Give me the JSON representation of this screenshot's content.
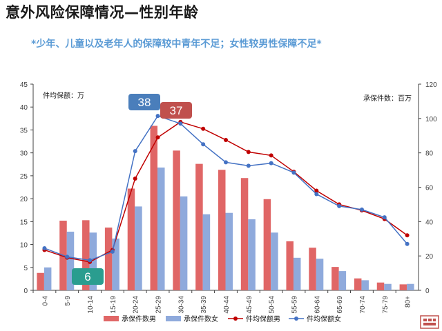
{
  "title": "意外风险保障情况—性别年龄",
  "subtitle": "*少年、儿童以及老年人的保障较中青年不足；女性较男性保障不足*",
  "chart_data": {
    "type": "bar",
    "categories": [
      "0-4",
      "5-9",
      "10-14",
      "15-19",
      "20-24",
      "25-29",
      "30-34",
      "35-39",
      "40-44",
      "45-49",
      "50-54",
      "55-59",
      "60-64",
      "65-69",
      "70-74",
      "75-79",
      "80+"
    ],
    "left_axis": {
      "label": "件均保额：万",
      "min": 0,
      "max": 45,
      "ticks": [
        0,
        5,
        10,
        15,
        20,
        25,
        30,
        35,
        40,
        45
      ]
    },
    "right_axis": {
      "label": "承保件数：百万",
      "min": 0,
      "max": 120,
      "ticks": [
        0,
        20,
        40,
        60,
        80,
        100,
        120
      ]
    },
    "series": [
      {
        "name": "承保件数男",
        "kind": "bar",
        "axis": "left",
        "color": "#e06666",
        "values": [
          3.8,
          15.2,
          15.3,
          13.7,
          22.2,
          35.9,
          30.5,
          27.6,
          26.3,
          24.5,
          19.9,
          10.7,
          9.3,
          5.1,
          2.6,
          1.7,
          1.3
        ]
      },
      {
        "name": "承保件数女",
        "kind": "bar",
        "axis": "left",
        "color": "#8faadc",
        "values": [
          5.0,
          12.8,
          12.6,
          11.3,
          18.3,
          26.8,
          20.5,
          16.6,
          16.9,
          15.5,
          12.6,
          7.1,
          6.9,
          4.2,
          2.2,
          1.4,
          1.4
        ]
      },
      {
        "name": "件均保额男",
        "kind": "line",
        "axis": "right",
        "color": "#c00000",
        "values": [
          23.5,
          19.0,
          16.5,
          23.5,
          65.0,
          89.0,
          98.0,
          94.0,
          87.5,
          80.5,
          78.5,
          69.0,
          58.0,
          50.0,
          46.5,
          41.5,
          32.0
        ]
      },
      {
        "name": "件均保额女",
        "kind": "line",
        "axis": "right",
        "color": "#4472c4",
        "values": [
          24.5,
          19.5,
          17.5,
          22.5,
          81.0,
          101.5,
          97.0,
          85.0,
          74.5,
          72.5,
          74.0,
          68.5,
          56.0,
          49.0,
          47.0,
          42.5,
          27.0
        ]
      }
    ],
    "callouts": [
      {
        "text": "38",
        "color": "#4a7ebb"
      },
      {
        "text": "37",
        "color": "#c0504d"
      },
      {
        "text": "6",
        "color": "#2a9d8f"
      }
    ]
  }
}
